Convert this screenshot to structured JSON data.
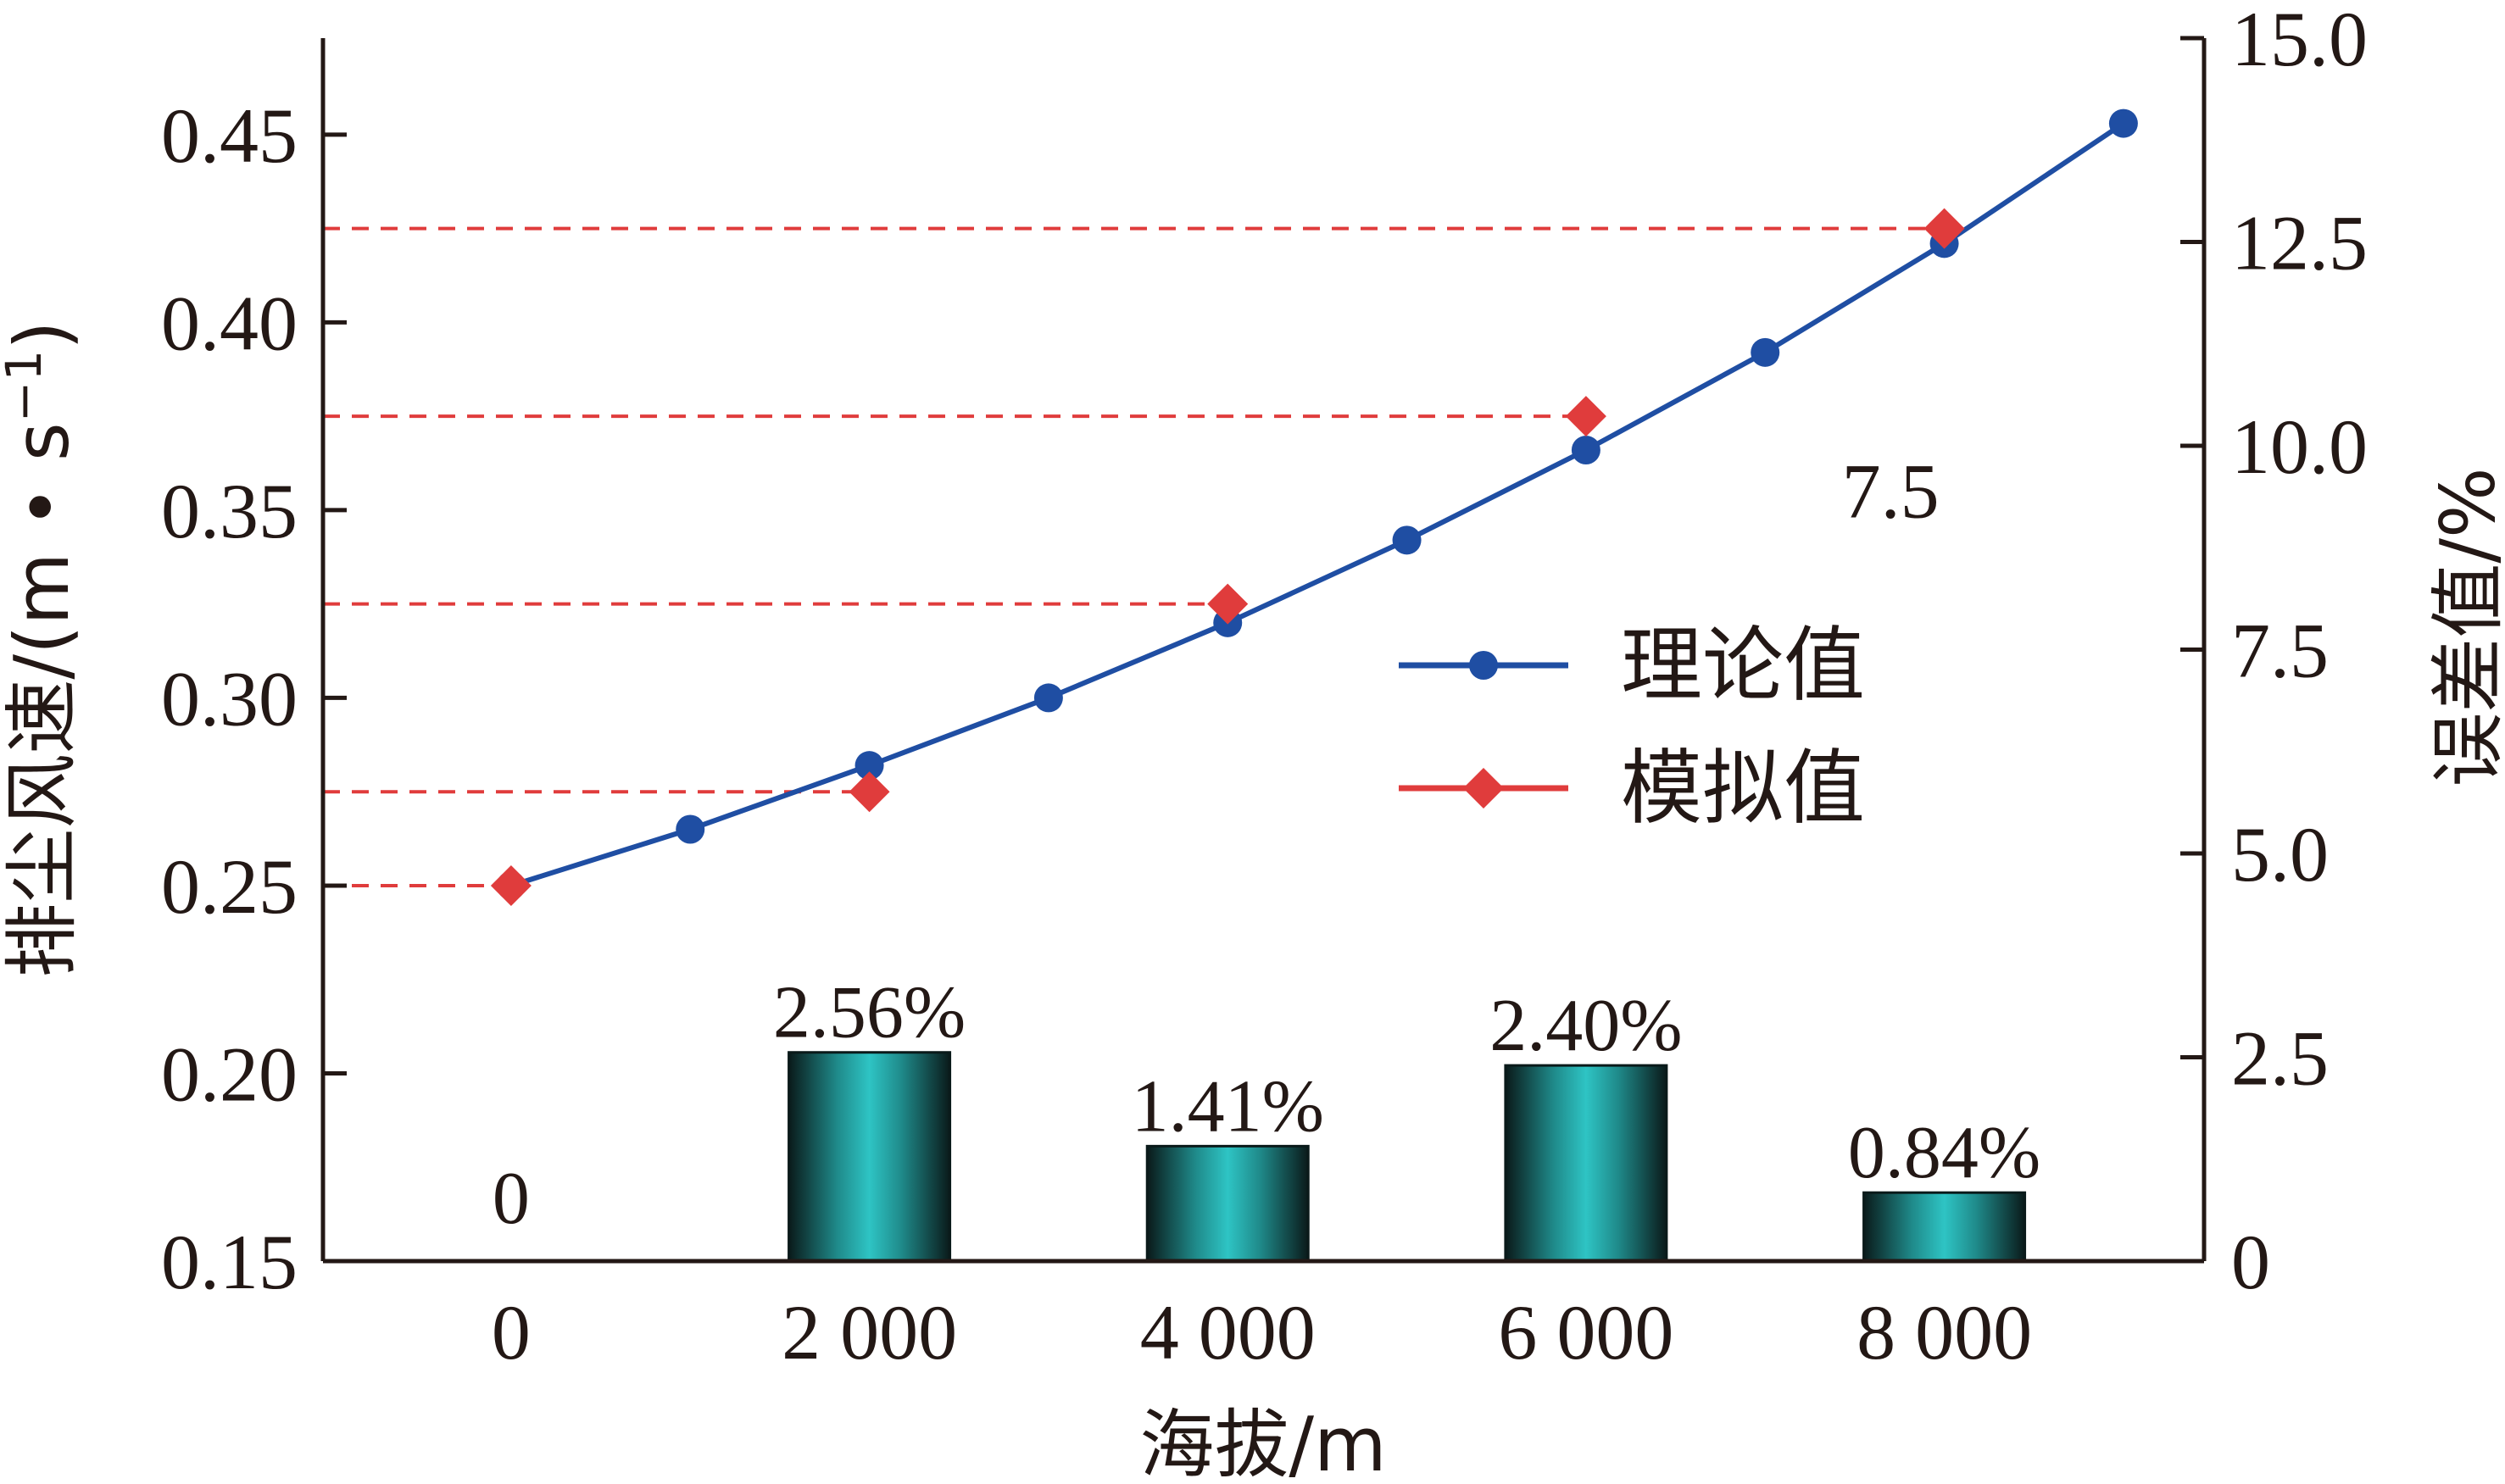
{
  "chart_data": {
    "type": "bar+line",
    "xlabel": "海拔/m",
    "ylabel_left": "排尘风速/(m • s",
    "ylabel_left_sup": "−1",
    "ylabel_left_close": ")",
    "ylabel_right": "误差值/%",
    "x_ticks": [
      {
        "value": 0,
        "label": "0"
      },
      {
        "value": 2000,
        "label": "2 000"
      },
      {
        "value": 4000,
        "label": "4 000"
      },
      {
        "value": 6000,
        "label": "6 000"
      },
      {
        "value": 8000,
        "label": "8 000"
      }
    ],
    "xlim": [
      -1050,
      9450
    ],
    "y_left_ticks": [
      {
        "value": 0.15,
        "label": "0.15"
      },
      {
        "value": 0.2,
        "label": "0.20"
      },
      {
        "value": 0.25,
        "label": "0.25"
      },
      {
        "value": 0.3,
        "label": "0.30"
      },
      {
        "value": 0.35,
        "label": "0.35"
      },
      {
        "value": 0.4,
        "label": "0.40"
      },
      {
        "value": 0.45,
        "label": "0.45"
      }
    ],
    "ylim_left": [
      0.15,
      0.4757
    ],
    "y_right_ticks": [
      {
        "value": 0,
        "label": "0"
      },
      {
        "value": 2.5,
        "label": "2.5"
      },
      {
        "value": 5.0,
        "label": "5.0"
      },
      {
        "value": 7.5,
        "label": "7.5"
      },
      {
        "value": 10.0,
        "label": "10.0"
      },
      {
        "value": 12.5,
        "label": "12.5"
      },
      {
        "value": 15.0,
        "label": "15.0"
      }
    ],
    "ylim_right": [
      0,
      15.0
    ],
    "bars": {
      "axis": "right",
      "x": [
        0,
        2000,
        4000,
        6000,
        8000
      ],
      "values": [
        0,
        2.56,
        1.41,
        2.4,
        0.84
      ],
      "labels": [
        "0",
        "2.56%",
        "1.41%",
        "2.40%",
        "0.84%"
      ],
      "color_edge": "#0a1a1a",
      "color_center": "#2ec4c4"
    },
    "series": [
      {
        "name": "理论值",
        "axis": "left",
        "marker": "circle",
        "color": "#1f4ea3",
        "x": [
          0,
          1000,
          2000,
          3000,
          4000,
          5000,
          6000,
          7000,
          8000,
          9000
        ],
        "values": [
          0.25,
          0.265,
          0.282,
          0.3,
          0.32,
          0.342,
          0.366,
          0.392,
          0.421,
          0.453
        ]
      },
      {
        "name": "模拟值",
        "axis": "left",
        "marker": "diamond",
        "color": "#e03c3c",
        "x": [
          0,
          2000,
          4000,
          6000,
          8000
        ],
        "values": [
          0.25,
          0.275,
          0.325,
          0.375,
          0.425
        ]
      }
    ],
    "reference_lines": {
      "axis": "left",
      "color": "#e03c3c",
      "style": "dashed",
      "from_x": -1050,
      "to_x": [
        0,
        2000,
        4000,
        6000,
        8000
      ],
      "values": [
        0.25,
        0.275,
        0.325,
        0.375,
        0.425
      ]
    },
    "annotation": {
      "text": "7.5",
      "x": 7700,
      "y_left": 0.3553
    },
    "legend": {
      "position": "center-right"
    }
  }
}
